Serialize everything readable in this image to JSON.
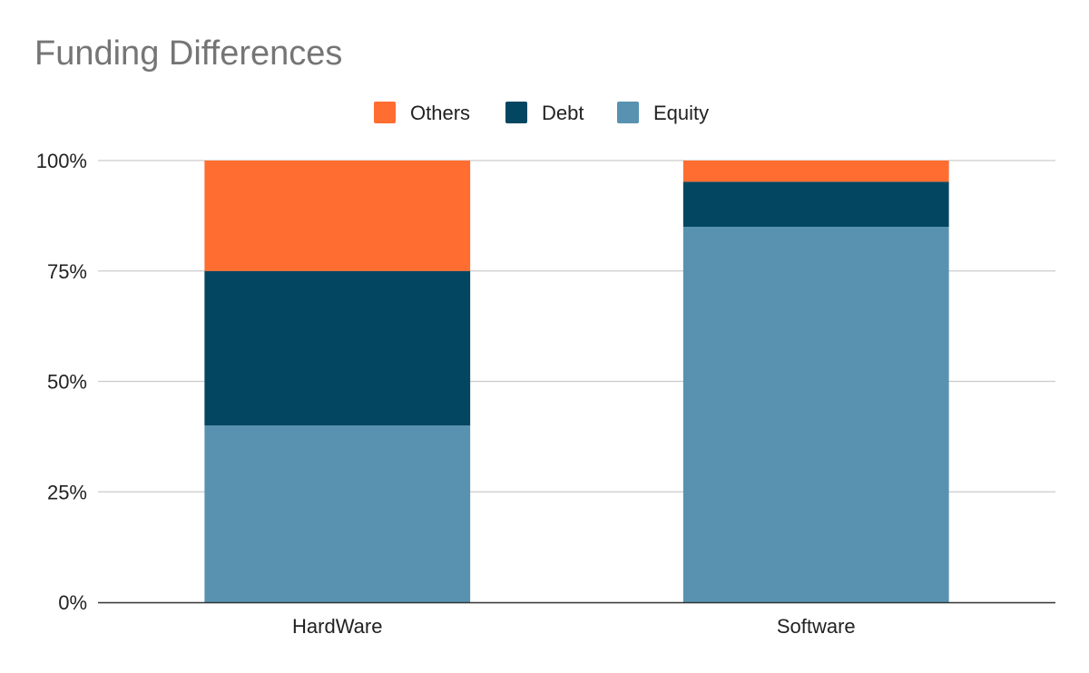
{
  "chart_data": {
    "type": "bar",
    "stacked": true,
    "title": "Funding Differences",
    "categories": [
      "HardWare",
      "Software"
    ],
    "series": [
      {
        "name": "Equity",
        "values": [
          40,
          85
        ],
        "color": "#5892B0"
      },
      {
        "name": "Debt",
        "values": [
          35,
          10.2
        ],
        "color": "#024661"
      },
      {
        "name": "Others",
        "values": [
          25,
          4.8
        ],
        "color": "#FF6D31"
      }
    ],
    "legend_order": [
      "Others",
      "Debt",
      "Equity"
    ],
    "yticks": [
      "0%",
      "25%",
      "50%",
      "75%",
      "100%"
    ],
    "ylim": [
      0,
      100
    ],
    "grid": true,
    "legend_position": "top-center"
  }
}
